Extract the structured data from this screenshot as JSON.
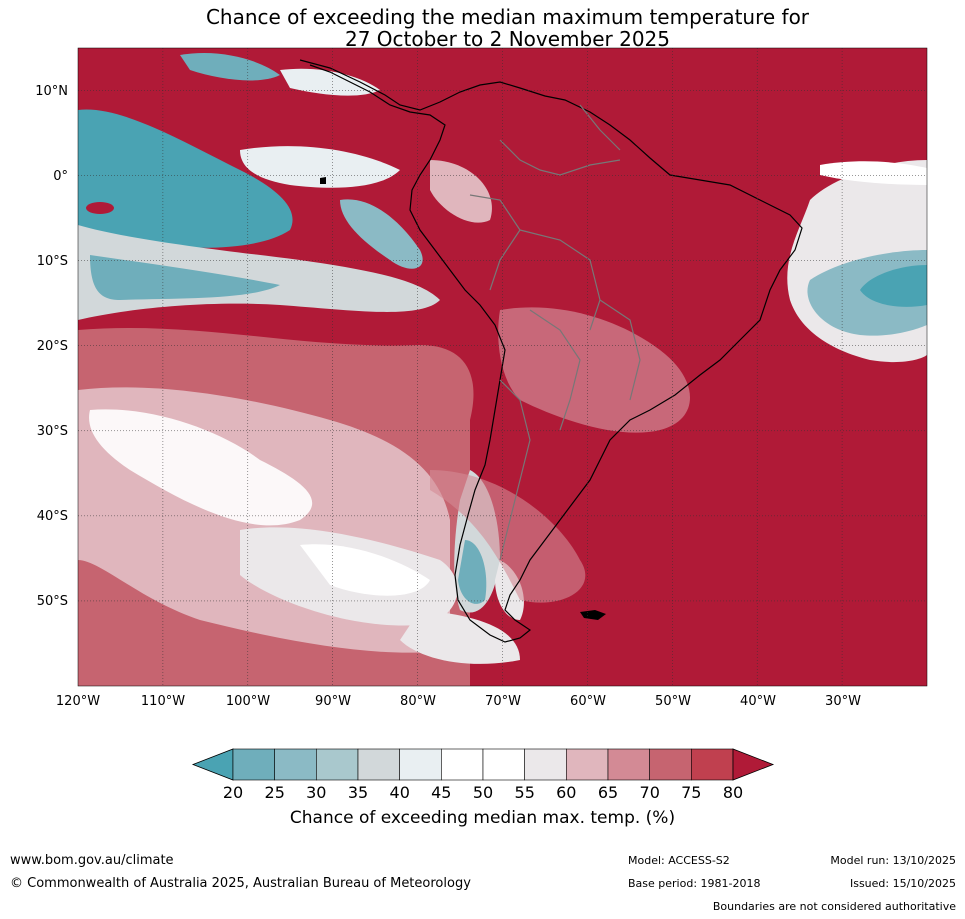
{
  "title": {
    "line1": "Chance of exceeding the median maximum temperature for",
    "line2": "27 October to 2 November 2025"
  },
  "map": {
    "lat_labels": [
      "10°N",
      "0°",
      "10°S",
      "20°S",
      "30°S",
      "40°S",
      "50°S"
    ],
    "lon_labels": [
      "120°W",
      "110°W",
      "100°W",
      "90°W",
      "80°W",
      "70°W",
      "60°W",
      "50°W",
      "40°W",
      "30°W"
    ],
    "extent": {
      "lon_min": -120,
      "lon_max": -20,
      "lat_min": -60,
      "lat_max": 15
    }
  },
  "colorbar": {
    "ticks": [
      "20",
      "25",
      "30",
      "35",
      "40",
      "45",
      "50",
      "55",
      "60",
      "65",
      "70",
      "75",
      "80"
    ],
    "colors": [
      "#4aa3b3",
      "#6faebb",
      "#8bbac5",
      "#a9c8cd",
      "#d2d8da",
      "#e9eff2",
      "#ffffff",
      "#ffffff",
      "#ebe8ea",
      "#e0b6bd",
      "#d38a95",
      "#c66470",
      "#c0404f",
      "#b01a37"
    ],
    "title": "Chance of exceeding median max. temp. (%)"
  },
  "footer": {
    "website": "www.bom.gov.au/climate",
    "copyright": "© Commonwealth of Australia 2025, Australian Bureau of Meteorology",
    "model": "Model: ACCESS-S2",
    "base_period": "Base period: 1981-2018",
    "model_run": "Model run: 13/10/2025",
    "issued": "Issued: 15/10/2025",
    "disclaimer": "Boundaries are not considered authoritative"
  }
}
